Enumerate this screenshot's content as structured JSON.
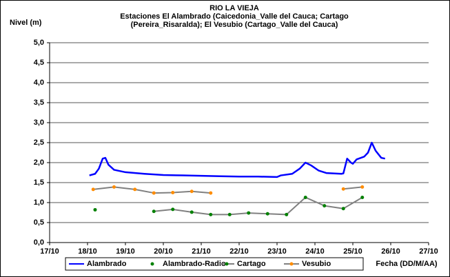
{
  "chart_data": {
    "type": "line",
    "title": [
      "RIO LA VIEJA",
      "Estaciones El Alambrado (Caicedonia_Valle del Cauca; Cartago",
      "(Pereira_Risaralda);  El Vesubio (Cartago_Valle del Cauca)"
    ],
    "y_label": "Nivel (m)",
    "x_label": "Fecha (DD/M/AA)",
    "xlim": [
      17,
      27
    ],
    "xticks": [
      {
        "value": 17,
        "label": "17/10"
      },
      {
        "value": 18,
        "label": "18/10"
      },
      {
        "value": 19,
        "label": "19/10"
      },
      {
        "value": 20,
        "label": "20/10"
      },
      {
        "value": 21,
        "label": "21/10"
      },
      {
        "value": 22,
        "label": "22/10"
      },
      {
        "value": 23,
        "label": "23/10"
      },
      {
        "value": 24,
        "label": "24/10"
      },
      {
        "value": 25,
        "label": "25/10"
      },
      {
        "value": 26,
        "label": "26/10"
      },
      {
        "value": 27,
        "label": "27/10"
      }
    ],
    "ylim": [
      0,
      5
    ],
    "yticks": [
      {
        "value": 0,
        "label": "0,0"
      },
      {
        "value": 0.5,
        "label": "0,5"
      },
      {
        "value": 1,
        "label": "1,0"
      },
      {
        "value": 1.5,
        "label": "1,5"
      },
      {
        "value": 2,
        "label": "2,0"
      },
      {
        "value": 2.5,
        "label": "2,5"
      },
      {
        "value": 3,
        "label": "3,0"
      },
      {
        "value": 3.5,
        "label": "3,5"
      },
      {
        "value": 4,
        "label": "4,0"
      },
      {
        "value": 4.5,
        "label": "4,5"
      },
      {
        "value": 5,
        "label": "5,0"
      }
    ],
    "grid": true,
    "series": [
      {
        "name": "Alambrado",
        "color": "#0000ff",
        "line": true,
        "marker": false,
        "x": [
          18.05,
          18.2,
          18.3,
          18.4,
          18.47,
          18.55,
          18.7,
          19,
          19.5,
          20,
          20.5,
          21,
          21.5,
          22,
          22.5,
          23,
          23.1,
          23.4,
          23.6,
          23.75,
          23.9,
          24.1,
          24.3,
          24.7,
          24.75,
          24.85,
          24.95,
          25.0,
          25.1,
          25.3,
          25.4,
          25.5,
          25.6,
          25.75,
          25.85
        ],
        "values": [
          1.68,
          1.72,
          1.85,
          2.1,
          2.12,
          1.95,
          1.82,
          1.76,
          1.72,
          1.69,
          1.68,
          1.67,
          1.66,
          1.65,
          1.65,
          1.64,
          1.68,
          1.72,
          1.85,
          2.0,
          1.93,
          1.8,
          1.74,
          1.72,
          1.73,
          2.1,
          2.0,
          1.97,
          2.08,
          2.15,
          2.25,
          2.5,
          2.3,
          2.12,
          2.1
        ]
      },
      {
        "name": "Alambrado-Radio",
        "color": "#008000",
        "line": false,
        "marker": true,
        "x": [
          18.2
        ],
        "values": [
          0.82
        ]
      },
      {
        "name": "Cartago",
        "color": "#808080",
        "marker_color": "#008000",
        "line": true,
        "marker": true,
        "x": [
          19.75,
          20.25,
          20.75,
          21.25,
          21.75,
          22.25,
          22.75,
          23.25,
          23.75,
          24.25,
          24.75,
          25.25
        ],
        "values": [
          0.78,
          0.83,
          0.76,
          0.7,
          0.7,
          0.74,
          0.72,
          0.7,
          1.13,
          0.92,
          0.85,
          1.13
        ]
      },
      {
        "name": "Vesubio",
        "color": "#808080",
        "marker_color": "#ff8c00",
        "line": true,
        "marker": true,
        "x": [
          18.15,
          18.7,
          19.25,
          19.75,
          20.25,
          20.75,
          21.25,
          23,
          24.75,
          25.25
        ],
        "values": [
          1.33,
          1.39,
          1.33,
          1.24,
          1.25,
          1.28,
          1.24,
          null,
          1.34,
          1.39
        ]
      }
    ]
  }
}
